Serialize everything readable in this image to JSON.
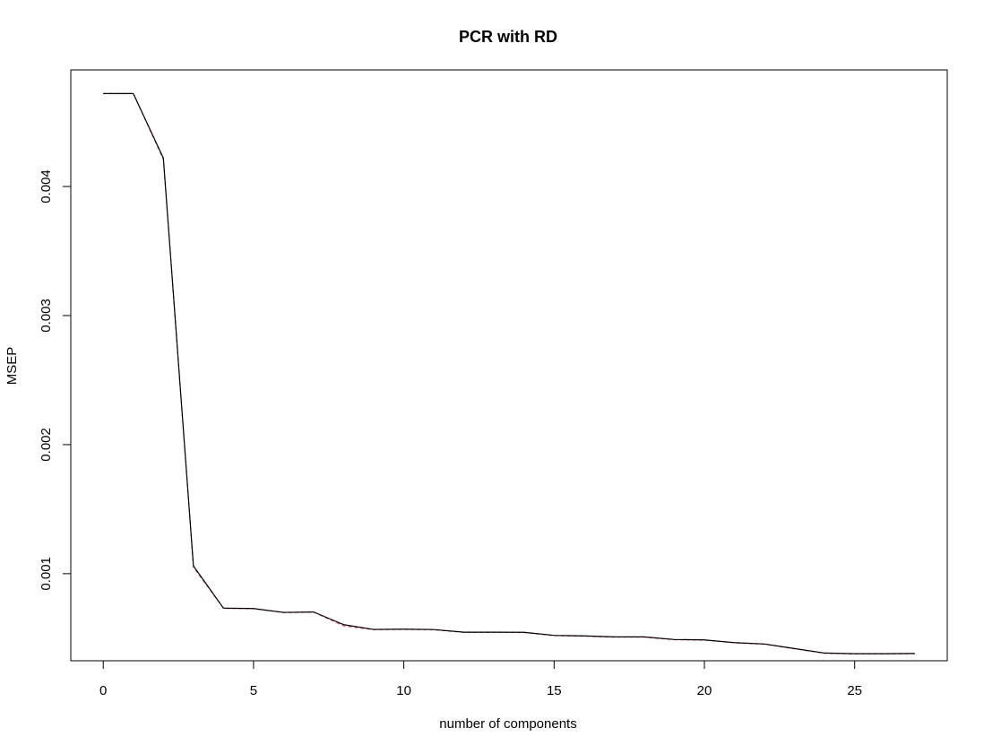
{
  "chart_data": {
    "type": "line",
    "title": "PCR with RD",
    "xlabel": "number of components",
    "ylabel": "MSEP",
    "xlim": [
      -1.08,
      28.08
    ],
    "ylim": [
      0.0003253,
      0.0049032
    ],
    "x_ticks": [
      0,
      5,
      10,
      15,
      20,
      25
    ],
    "x_tick_labels": [
      "0",
      "5",
      "10",
      "15",
      "20",
      "25"
    ],
    "y_ticks": [
      0.001,
      0.002,
      0.003,
      0.004
    ],
    "y_tick_labels": [
      "0.001",
      "0.002",
      "0.003",
      "0.004"
    ],
    "grid": false,
    "legend": "none",
    "x": [
      0,
      1,
      2,
      3,
      4,
      5,
      6,
      7,
      8,
      9,
      10,
      11,
      12,
      13,
      14,
      15,
      16,
      17,
      18,
      19,
      20,
      21,
      22,
      23,
      24,
      25,
      26,
      27
    ],
    "series": [
      {
        "color": "#000000",
        "dash": "solid",
        "values": [
          0.00472,
          0.00472,
          0.00422,
          0.00106,
          0.000733,
          0.00073,
          0.0007,
          0.000703,
          0.000605,
          0.000568,
          0.00057,
          0.000567,
          0.000547,
          0.000547,
          0.000546,
          0.000522,
          0.000518,
          0.00051,
          0.00051,
          0.00049,
          0.000487,
          0.000466,
          0.000455,
          0.00042,
          0.000385,
          0.00038,
          0.00038,
          0.000382
        ]
      },
      {
        "color": "#DF536B",
        "dash": "dashed",
        "values": [
          0.00472,
          0.00472,
          0.00421,
          0.00105,
          0.000731,
          0.000729,
          0.000698,
          0.000702,
          0.000595,
          0.000566,
          0.000568,
          0.000565,
          0.000545,
          0.000545,
          0.000544,
          0.00052,
          0.000516,
          0.000508,
          0.000508,
          0.000488,
          0.000485,
          0.000464,
          0.000453,
          0.000418,
          0.000383,
          0.000378,
          0.000378,
          0.00038
        ]
      }
    ]
  }
}
